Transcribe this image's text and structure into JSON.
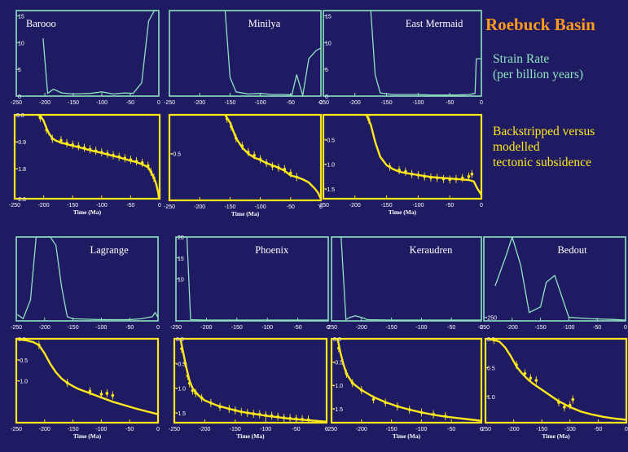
{
  "figure": {
    "title": "Roebuck Basin",
    "legend_strain": [
      "Strain Rate",
      "(per billion years)"
    ],
    "legend_subsidence": [
      "Backstripped versus",
      "modelled",
      "tectonic subsidence"
    ],
    "xlabel": "Time (Ma)",
    "colors": {
      "background": "#1f1b63",
      "strain_frame": "#8fe3c0",
      "subsidence": "#ffe81a",
      "title": "#ff9a1a"
    }
  },
  "chart_data": [
    {
      "type": "line",
      "well": "Barooo",
      "panel": "strain",
      "grid_position": "row1-col1",
      "xlim": [
        -250,
        0
      ],
      "ylim": [
        0,
        16
      ],
      "xticks": [
        -250,
        -200,
        -150,
        -100,
        -50,
        0
      ],
      "yticks": [
        0,
        5,
        10,
        15
      ],
      "x": [
        -203,
        -195,
        -185,
        -170,
        -150,
        -120,
        -100,
        -80,
        -60,
        -45,
        -30,
        -18,
        -8,
        -3
      ],
      "y": [
        10.8,
        0.5,
        1.3,
        0.6,
        0.4,
        0.5,
        0.8,
        0.4,
        0.6,
        0.5,
        2.5,
        14,
        16,
        16
      ]
    },
    {
      "type": "line",
      "well": "Minilya",
      "panel": "strain",
      "grid_position": "row1-col2",
      "xlim": [
        -250,
        0
      ],
      "ylim": [
        0,
        16
      ],
      "xticks": [
        -250,
        -200,
        -150,
        -100,
        -50,
        0
      ],
      "yticks": [],
      "x": [
        -158,
        -150,
        -140,
        -120,
        -100,
        -80,
        -60,
        -48,
        -40,
        -30,
        -20,
        -8,
        0
      ],
      "y": [
        16,
        3.5,
        0.8,
        0.4,
        0.5,
        0.3,
        0.3,
        0.2,
        4,
        0.1,
        7,
        8.5,
        9
      ]
    },
    {
      "type": "line",
      "well": "East Mermaid",
      "panel": "strain",
      "grid_position": "row1-col3",
      "xlim": [
        -250,
        0
      ],
      "ylim": [
        0,
        16
      ],
      "xticks": [
        -250,
        -200,
        -150,
        -100,
        -50,
        0
      ],
      "yticks": [
        0,
        5,
        10,
        15
      ],
      "x": [
        -175,
        -168,
        -160,
        -140,
        -120,
        -100,
        -80,
        -60,
        -40,
        -20,
        -10,
        -8,
        0
      ],
      "y": [
        16,
        4,
        0.6,
        0.3,
        0.3,
        0.3,
        0.2,
        0.2,
        0.2,
        0.3,
        0.5,
        7,
        7
      ]
    },
    {
      "type": "line",
      "well": "Lagrange",
      "panel": "strain",
      "grid_position": "row2-col1",
      "xlim": [
        -250,
        0
      ],
      "ylim": [
        0,
        20
      ],
      "xticks": [
        -250,
        -200,
        -150,
        -100,
        -50,
        0
      ],
      "yticks": [],
      "x": [
        -248,
        -238,
        -225,
        -215,
        -205,
        -190,
        -180,
        -170,
        -160,
        -150,
        -100,
        -50,
        -30,
        -10,
        -5,
        0
      ],
      "y": [
        1.5,
        0.5,
        5,
        20,
        20,
        20,
        18,
        8,
        1,
        0.5,
        0.3,
        0.3,
        0.5,
        1,
        2,
        0.8
      ]
    },
    {
      "type": "line",
      "well": "Phoenix",
      "panel": "strain",
      "grid_position": "row2-col2",
      "xlim": [
        -250,
        0
      ],
      "ylim": [
        0,
        20
      ],
      "xticks": [
        -250,
        -200,
        -150,
        -100,
        -50,
        0
      ],
      "yticks": [
        10,
        15,
        20
      ],
      "x": [
        -238,
        -232,
        -226,
        -200,
        -150,
        -100,
        -50,
        0
      ],
      "y": [
        20,
        20,
        0.3,
        0.2,
        0.2,
        0.2,
        0.2,
        0.2
      ]
    },
    {
      "type": "line",
      "well": "Keraudren",
      "panel": "strain",
      "grid_position": "row2-col3",
      "xlim": [
        -250,
        0
      ],
      "ylim": [
        0,
        20
      ],
      "xticks": [
        -250,
        -200,
        -150,
        -100,
        -50,
        0
      ],
      "yticks": [],
      "x": [
        -240,
        -234,
        -226,
        -220,
        -210,
        -200,
        -190,
        -150,
        -100,
        -50,
        0
      ],
      "y": [
        20,
        20,
        0.3,
        0.8,
        1.2,
        0.8,
        0.3,
        0.2,
        0.2,
        0.2,
        0.2
      ]
    },
    {
      "type": "line",
      "well": "Bedout",
      "panel": "strain",
      "grid_position": "row2-col4",
      "xlim": [
        -250,
        0
      ],
      "ylim": [
        -300,
        900
      ],
      "xticks": [
        -250,
        -200,
        -150,
        -100,
        -50,
        0
      ],
      "yticks": [
        -250
      ],
      "x": [
        -230,
        -210,
        -200,
        -185,
        -170,
        -150,
        -140,
        -125,
        -100,
        -60,
        -20,
        0
      ],
      "y": [
        200,
        650,
        950,
        500,
        -180,
        -100,
        250,
        350,
        -250,
        -270,
        -280,
        -290
      ]
    },
    {
      "type": "line",
      "well": "Barooo",
      "panel": "subsidence",
      "grid_position": "row1-col1",
      "xlim": [
        -250,
        0
      ],
      "ylim": [
        -2.8,
        0
      ],
      "xticks": [
        -250,
        -200,
        -150,
        -100,
        -50,
        0
      ],
      "yticks": [
        0,
        -0.9,
        -1.8,
        -2.8
      ],
      "ytick_labels": [
        "0.0",
        "-0.9",
        "-1.8",
        "-2.8"
      ],
      "x": [
        -210,
        -205,
        -200,
        -195,
        -190,
        -185,
        -180,
        -170,
        -160,
        -150,
        -140,
        -130,
        -120,
        -110,
        -100,
        -90,
        -80,
        -70,
        -60,
        -50,
        -40,
        -30,
        -20,
        -15,
        -10,
        -6,
        -3,
        -1
      ],
      "y": [
        0,
        -0.05,
        -0.2,
        -0.45,
        -0.65,
        -0.78,
        -0.85,
        -0.93,
        -0.98,
        -1.03,
        -1.08,
        -1.13,
        -1.18,
        -1.23,
        -1.27,
        -1.32,
        -1.37,
        -1.42,
        -1.48,
        -1.53,
        -1.58,
        -1.65,
        -1.75,
        -1.9,
        -2.1,
        -2.3,
        -2.55,
        -2.8
      ],
      "points_x": [
        -206,
        -195,
        -185,
        -170,
        -160,
        -150,
        -140,
        -130,
        -120,
        -110,
        -100,
        -90,
        -80,
        -70,
        -60,
        -50,
        -40,
        -30,
        -20,
        -15,
        -10
      ],
      "points_y": [
        -0.1,
        -0.5,
        -0.8,
        -0.85,
        -0.95,
        -1.0,
        -1.05,
        -1.1,
        -1.15,
        -1.2,
        -1.25,
        -1.3,
        -1.35,
        -1.4,
        -1.45,
        -1.5,
        -1.55,
        -1.6,
        -1.7,
        -1.9,
        -2.1
      ]
    },
    {
      "type": "line",
      "well": "Minilya",
      "panel": "subsidence",
      "grid_position": "row1-col2",
      "xlim": [
        -250,
        0
      ],
      "ylim": [
        -1.1,
        0
      ],
      "xticks": [
        -250,
        -200,
        -150,
        -100,
        -50,
        0
      ],
      "yticks": [
        -0.5
      ],
      "ytick_labels": [
        "-0.5"
      ],
      "x": [
        -158,
        -150,
        -145,
        -140,
        -130,
        -120,
        -110,
        -100,
        -90,
        -80,
        -70,
        -60,
        -50,
        -40,
        -30,
        -20,
        -10,
        -5,
        0
      ],
      "y": [
        0,
        -0.1,
        -0.2,
        -0.3,
        -0.42,
        -0.5,
        -0.55,
        -0.58,
        -0.62,
        -0.65,
        -0.68,
        -0.72,
        -0.78,
        -0.8,
        -0.83,
        -0.87,
        -0.95,
        -1.0,
        -1.08
      ],
      "points_x": [
        -155,
        -148,
        -140,
        -130,
        -120,
        -110,
        -100,
        -90,
        -80,
        -70,
        -60,
        -50,
        -40
      ],
      "points_y": [
        -0.05,
        -0.15,
        -0.3,
        -0.4,
        -0.48,
        -0.52,
        -0.57,
        -0.62,
        -0.66,
        -0.68,
        -0.7,
        -0.75,
        -0.8
      ]
    },
    {
      "type": "line",
      "well": "East Mermaid",
      "panel": "subsidence",
      "grid_position": "row1-col3",
      "xlim": [
        -250,
        0
      ],
      "ylim": [
        -1.7,
        0
      ],
      "xticks": [
        -250,
        -200,
        -150,
        -100,
        -50,
        0
      ],
      "yticks": [
        -0.5,
        -1.0,
        -1.5
      ],
      "ytick_labels": [
        "-0.5",
        "-1.0",
        "-1.5"
      ],
      "x": [
        -182,
        -175,
        -168,
        -160,
        -150,
        -140,
        -130,
        -120,
        -110,
        -100,
        -90,
        -80,
        -70,
        -60,
        -50,
        -40,
        -30,
        -20,
        -12,
        -6,
        0
      ],
      "y": [
        0,
        -0.2,
        -0.55,
        -0.85,
        -1.02,
        -1.1,
        -1.15,
        -1.18,
        -1.2,
        -1.22,
        -1.24,
        -1.26,
        -1.27,
        -1.28,
        -1.29,
        -1.3,
        -1.31,
        -1.32,
        -1.35,
        -1.5,
        -1.62
      ],
      "points_x": [
        -178,
        -145,
        -130,
        -120,
        -110,
        -100,
        -90,
        -80,
        -70,
        -60,
        -50,
        -40,
        -30,
        -20,
        -15
      ],
      "points_y": [
        -0.1,
        -1.05,
        -1.12,
        -1.15,
        -1.2,
        -1.22,
        -1.25,
        -1.27,
        -1.28,
        -1.3,
        -1.31,
        -1.3,
        -1.28,
        -1.25,
        -1.2
      ]
    },
    {
      "type": "line",
      "well": "Lagrange",
      "panel": "subsidence",
      "grid_position": "row2-col1",
      "xlim": [
        -250,
        0
      ],
      "ylim": [
        -2.0,
        0
      ],
      "xticks": [
        -250,
        -200,
        -150,
        -100,
        -50,
        0
      ],
      "yticks": [
        0,
        -0.5,
        -1.0
      ],
      "ytick_labels": [
        "0.0",
        "-0.5",
        "-1.0"
      ],
      "x": [
        -250,
        -235,
        -220,
        -210,
        -200,
        -190,
        -180,
        -170,
        -160,
        -150,
        -140,
        -120,
        -100,
        -80,
        -60,
        -40,
        -20,
        0
      ],
      "y": [
        0,
        -0.03,
        -0.08,
        -0.15,
        -0.35,
        -0.6,
        -0.8,
        -0.95,
        -1.05,
        -1.13,
        -1.2,
        -1.3,
        -1.4,
        -1.5,
        -1.58,
        -1.66,
        -1.73,
        -1.8
      ],
      "points_x": [
        -210,
        -160,
        -120,
        -100,
        -90,
        -80
      ],
      "points_y": [
        -0.15,
        -1.05,
        -1.25,
        -1.32,
        -1.3,
        -1.35
      ]
    },
    {
      "type": "line",
      "well": "Phoenix",
      "panel": "subsidence",
      "grid_position": "row2-col2",
      "xlim": [
        -250,
        0
      ],
      "ylim": [
        -1.7,
        0
      ],
      "xticks": [
        -250,
        -200,
        -150,
        -100,
        -50,
        0
      ],
      "yticks": [
        0,
        -0.5,
        -1.0,
        -1.5
      ],
      "ytick_labels": [
        "0.0",
        "-0.5",
        "-1.0",
        "-1.5"
      ],
      "x": [
        -240,
        -235,
        -230,
        -225,
        -220,
        -210,
        -200,
        -180,
        -160,
        -140,
        -120,
        -100,
        -80,
        -60,
        -40,
        -20,
        0
      ],
      "y": [
        0,
        -0.3,
        -0.6,
        -0.85,
        -1.0,
        -1.15,
        -1.25,
        -1.35,
        -1.42,
        -1.48,
        -1.52,
        -1.56,
        -1.59,
        -1.62,
        -1.64,
        -1.66,
        -1.68
      ],
      "points_x": [
        -238,
        -232,
        -228,
        -225,
        -220,
        -215,
        -205,
        -190,
        -175,
        -160,
        -150,
        -140,
        -130,
        -120,
        -110,
        -100,
        -90,
        -80,
        -70,
        -60,
        -50,
        -40,
        -30
      ],
      "points_y": [
        -0.2,
        -0.5,
        -0.75,
        -0.9,
        -1.05,
        -1.1,
        -1.2,
        -1.3,
        -1.38,
        -1.42,
        -1.45,
        -1.48,
        -1.5,
        -1.52,
        -1.53,
        -1.55,
        -1.56,
        -1.58,
        -1.6,
        -1.61,
        -1.62,
        -1.63,
        -1.64
      ]
    },
    {
      "type": "line",
      "well": "Keraudren",
      "panel": "subsidence",
      "grid_position": "row2-col3",
      "xlim": [
        -250,
        0
      ],
      "ylim": [
        -1.8,
        0
      ],
      "xticks": [
        -250,
        -200,
        -150,
        -100,
        -50,
        0
      ],
      "yticks": [
        0,
        -0.5,
        -1.0,
        -1.5
      ],
      "ytick_labels": [
        "0.0",
        "-0.5",
        "-1.0",
        "-1.5"
      ],
      "x": [
        -240,
        -235,
        -230,
        -225,
        -215,
        -200,
        -180,
        -160,
        -140,
        -120,
        -100,
        -80,
        -60,
        -40,
        -20,
        0
      ],
      "y": [
        0,
        -0.3,
        -0.55,
        -0.75,
        -0.95,
        -1.1,
        -1.25,
        -1.36,
        -1.45,
        -1.52,
        -1.58,
        -1.63,
        -1.67,
        -1.7,
        -1.73,
        -1.76
      ],
      "points_x": [
        -238,
        -225,
        -215,
        -200,
        -180,
        -160,
        -140,
        -120,
        -100,
        -80,
        -60
      ],
      "points_y": [
        -0.2,
        -0.75,
        -0.95,
        -1.1,
        -1.3,
        -1.37,
        -1.45,
        -1.52,
        -1.58,
        -1.62,
        -1.66
      ]
    },
    {
      "type": "line",
      "well": "Bedout",
      "panel": "subsidence",
      "grid_position": "row2-col4",
      "xlim": [
        -250,
        0
      ],
      "ylim": [
        1.45,
        0
      ],
      "xticks": [
        -250,
        -200,
        -150,
        -100,
        -50,
        0
      ],
      "yticks": [
        0,
        0.5,
        1.0
      ],
      "ytick_labels": [
        "0.0",
        "0.5",
        "1.0"
      ],
      "x": [
        -245,
        -235,
        -225,
        -215,
        -205,
        -195,
        -185,
        -175,
        -165,
        -150,
        -135,
        -120,
        -100,
        -80,
        -60,
        -40,
        -20,
        0
      ],
      "y": [
        0,
        0.02,
        0.05,
        0.15,
        0.3,
        0.48,
        0.6,
        0.7,
        0.78,
        0.88,
        0.98,
        1.08,
        1.18,
        1.26,
        1.31,
        1.35,
        1.38,
        1.4
      ],
      "points_x": [
        -235,
        -195,
        -180,
        -170,
        -160,
        -120,
        -110,
        -100,
        -95
      ],
      "points_y": [
        0.02,
        0.45,
        0.6,
        0.68,
        0.72,
        1.1,
        1.18,
        1.15,
        1.05
      ]
    }
  ]
}
